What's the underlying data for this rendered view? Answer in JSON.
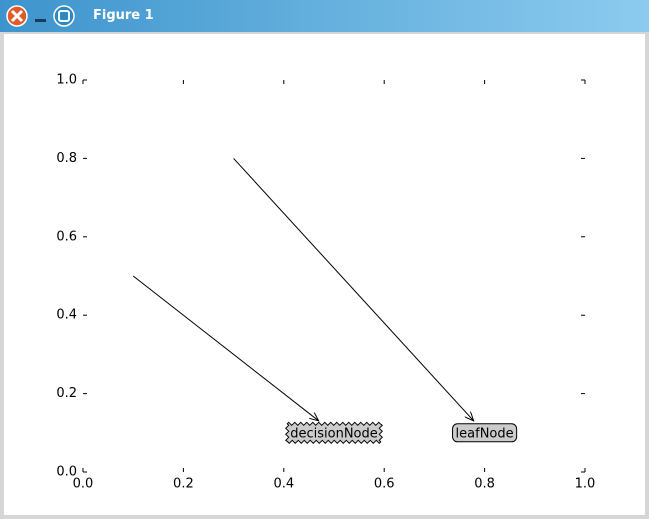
{
  "window": {
    "title": "Figure 1"
  },
  "chart_data": {
    "type": "annotation",
    "xlim": [
      0,
      1
    ],
    "ylim": [
      0,
      1
    ],
    "xticks": [
      {
        "value": 0,
        "label": "0.0"
      },
      0.2,
      0.4,
      0.6,
      0.8,
      {
        "value": 1,
        "label": "1.0"
      }
    ],
    "yticks": [
      {
        "value": 0,
        "label": "0.0"
      },
      0.2,
      0.4,
      0.6,
      0.8,
      {
        "value": 1,
        "label": "1.0"
      }
    ],
    "box_color": "#cccccc",
    "annotations": [
      {
        "text": "decisionNode",
        "xy": [
          0.1,
          0.5
        ],
        "xytext": [
          0.5,
          0.1
        ],
        "boxstyle": "sawtooth"
      },
      {
        "text": "leafNode",
        "xy": [
          0.3,
          0.8
        ],
        "xytext": [
          0.8,
          0.1
        ],
        "boxstyle": "round4"
      }
    ]
  }
}
